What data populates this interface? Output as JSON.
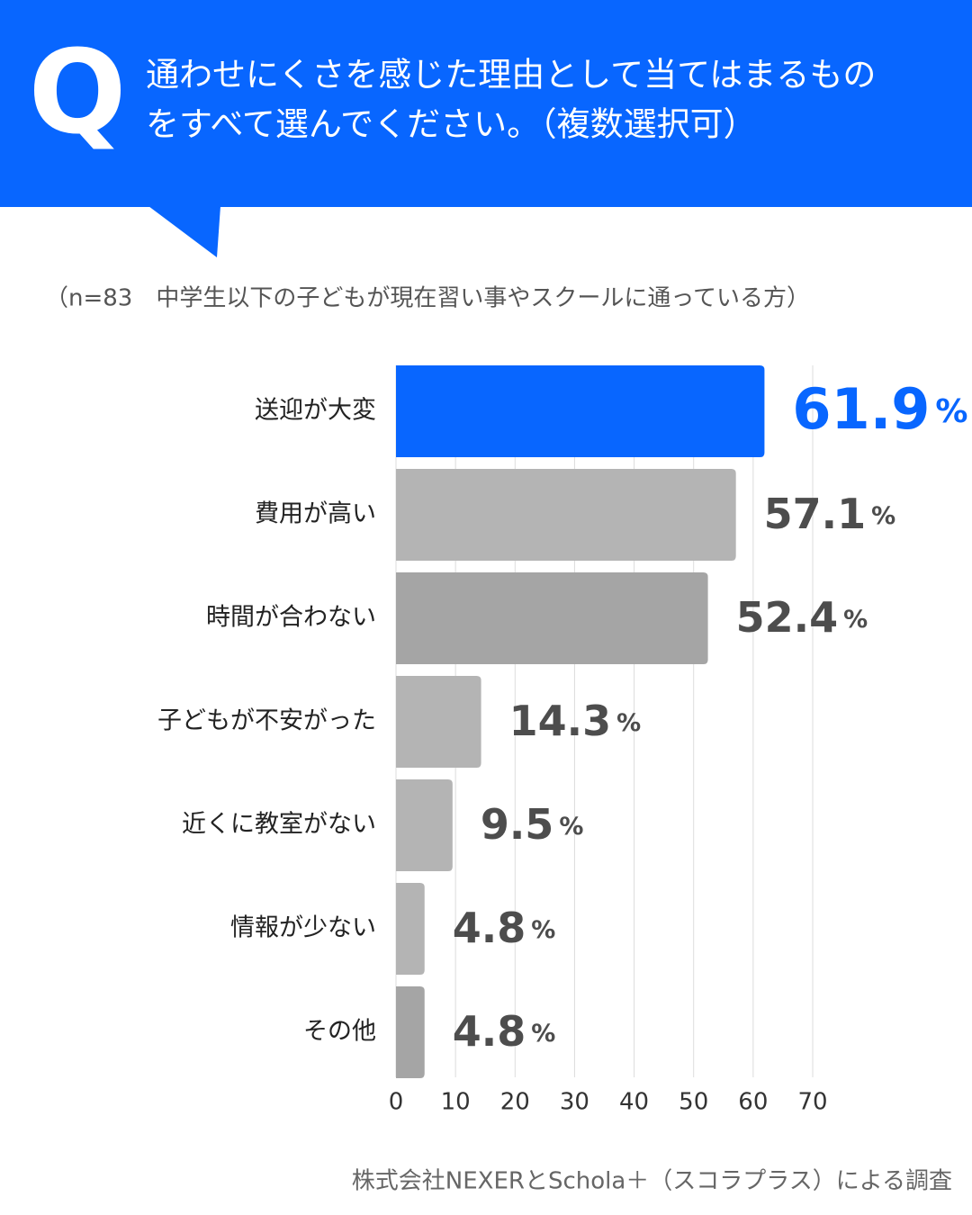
{
  "chart_data": {
    "type": "hbar",
    "title_marker": "Q",
    "title_lines": [
      "通わせにくさを感じた理由として当てはまるもの",
      "をすべて選んでください。（複数選択可）"
    ],
    "subtitle": "（n=83　中学生以下の子どもが現在習い事やスクールに通っている方）",
    "categories": [
      "送迎が大変",
      "費用が高い",
      "時間が合わない",
      "子どもが不安がった",
      "近くに教室がない",
      "情報が少ない",
      "その他"
    ],
    "values": [
      61.9,
      57.1,
      52.4,
      14.3,
      9.5,
      4.8,
      4.8
    ],
    "value_unit": "%",
    "colors": [
      "#0866ff",
      "#b4b4b4",
      "#a5a5a5",
      "#b4b4b4",
      "#b4b4b4",
      "#b4b4b4",
      "#a5a5a5"
    ],
    "xlim": [
      0,
      70
    ],
    "xticks": [
      0,
      10,
      20,
      30,
      40,
      50,
      60,
      70
    ],
    "grid": true,
    "source": "株式会社NEXERとSchola＋（スコラプラス）による調査"
  }
}
